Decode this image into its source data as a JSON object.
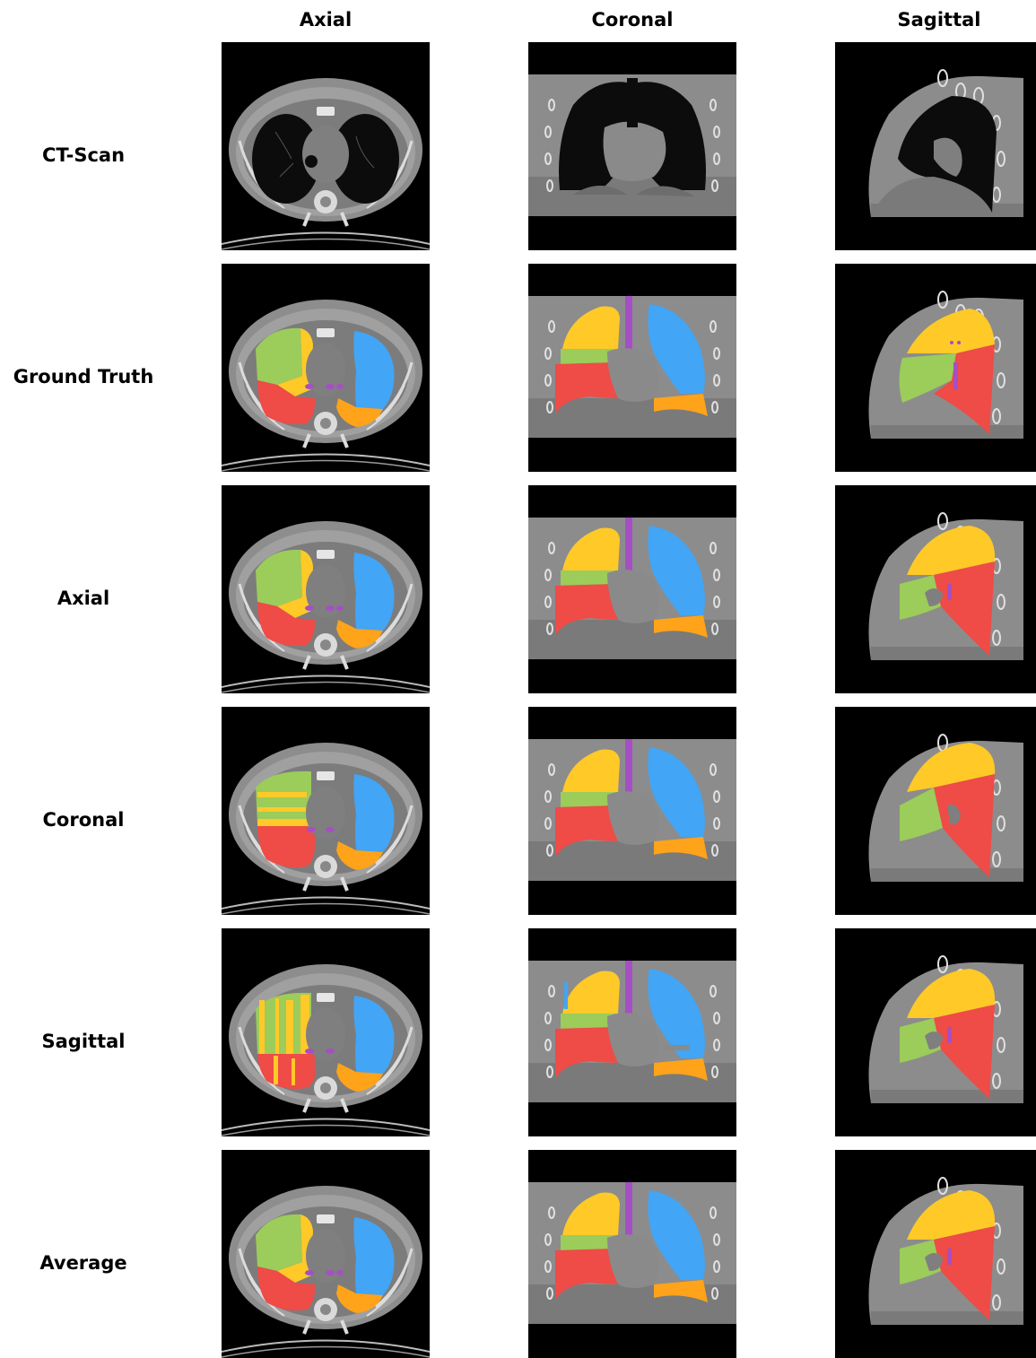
{
  "columns": [
    "Axial",
    "Coronal",
    "Sagittal"
  ],
  "rows": [
    "CT-Scan",
    "Ground Truth",
    "Axial",
    "Coronal",
    "Sagittal",
    "Average"
  ],
  "segment_colors": {
    "right_upper": "#ffc928",
    "right_middle": "#9ccc5a",
    "right_lower": "#ef4b47",
    "left_upper": "#42a5f5",
    "left_lower": "#ffa31a",
    "airway": "#a64fc4"
  }
}
